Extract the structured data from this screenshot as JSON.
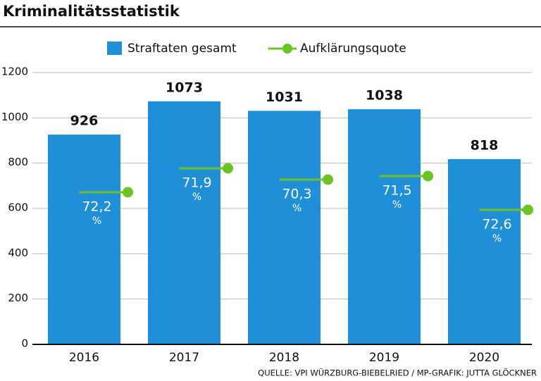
{
  "chart_data": {
    "type": "bar",
    "title": "Kriminalitätsstatistik",
    "categories": [
      "2016",
      "2017",
      "2018",
      "2019",
      "2020"
    ],
    "series": [
      {
        "name": "Straftaten gesamt",
        "color": "#1f8fd7",
        "values": [
          926,
          1073,
          1031,
          1038,
          818
        ]
      },
      {
        "name": "Aufklärungsquote",
        "color": "#6cc424",
        "values": [
          72.2,
          71.9,
          70.3,
          71.5,
          72.6
        ],
        "value_labels": [
          "72,2",
          "71,9",
          "70,3",
          "71,5",
          "72,6"
        ],
        "unit": "%"
      }
    ],
    "ylim": [
      0,
      1200
    ],
    "yticks": [
      0,
      200,
      400,
      600,
      800,
      1000,
      1200
    ],
    "grid": true,
    "source": "QUELLE: VPI WÜRZBURG-BIEBELRIED  / MP-GRAFIK: JUTTA GLÖCKNER"
  }
}
